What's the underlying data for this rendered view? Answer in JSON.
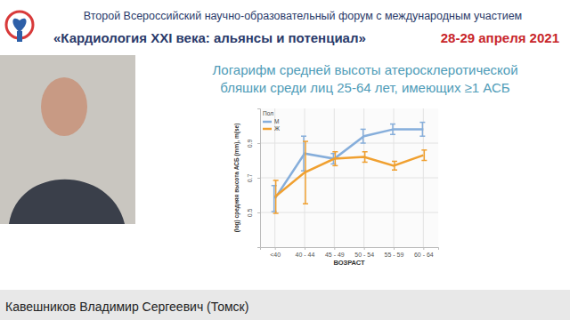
{
  "header": {
    "line1": "Второй Всероссийский научно-образовательный форум с международным участием",
    "line2": "«Кардиология XXI века: альянсы и потенциал»",
    "date": "28-29 апреля 2021"
  },
  "speaker": "Кавешников Владимир Сергеевич (Томск)",
  "chart_data": {
    "type": "line",
    "title": "Логарифм средней высоты атеросклеротической бляшки среди лиц 25-64 лет, имеющих ≥1 АСБ",
    "x_label": "ВОЗРАСТ",
    "y_label": "(log) средняя высота АСБ (mm), m(se)",
    "legend_title": "Пол",
    "categories": [
      "<40",
      "40 - 44",
      "45 - 49",
      "50 - 54",
      "55 - 59",
      "60 - 64"
    ],
    "series": [
      {
        "name": "М",
        "color": "#86aedb",
        "values": [
          0.58,
          0.84,
          0.81,
          0.94,
          0.98,
          0.98
        ],
        "errors": [
          0.075,
          0.1,
          0.03,
          0.04,
          0.03,
          0.04
        ]
      },
      {
        "name": "Ж",
        "color": "#f0a030",
        "values": [
          0.59,
          0.73,
          0.81,
          0.82,
          0.77,
          0.83
        ],
        "errors": [
          0.095,
          0.18,
          0.04,
          0.03,
          0.025,
          0.03
        ]
      }
    ],
    "ylim": [
      0.3,
      1.1
    ],
    "yticks": [
      0.5,
      0.7,
      0.9
    ],
    "grid": true,
    "legend": "top-left",
    "marker": "none"
  }
}
